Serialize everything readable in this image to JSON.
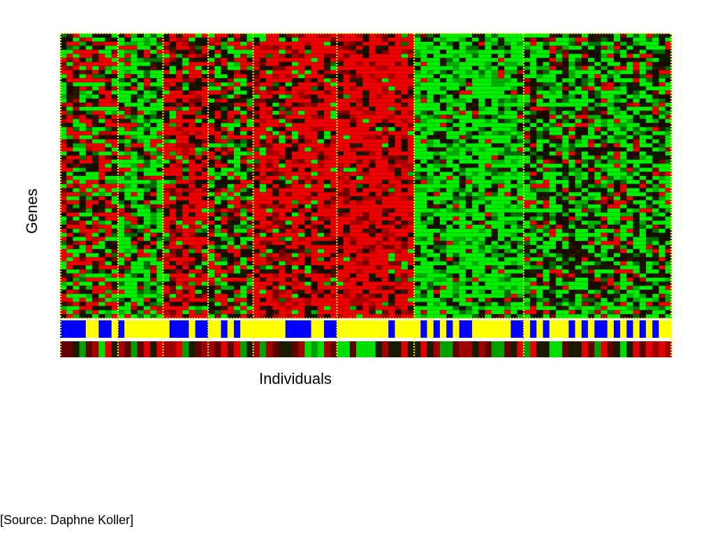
{
  "slide": {
    "ylabel": "Genes",
    "xlabel": "Individuals",
    "source": "[Source: Daphne Koller]"
  },
  "chart_data": {
    "type": "heatmap",
    "title": "",
    "xlabel": "Individuals",
    "ylabel": "Genes",
    "n_columns": 95,
    "n_rows": 70,
    "clusters": [
      {
        "columns": 9,
        "character": "mixed, red-leaning"
      },
      {
        "columns": 7,
        "character": "mostly green"
      },
      {
        "columns": 7,
        "character": "red with dark cells"
      },
      {
        "columns": 7,
        "character": "mixed, dark"
      },
      {
        "columns": 13,
        "character": "mostly red"
      },
      {
        "columns": 12,
        "character": "solid red with dark cells"
      },
      {
        "columns": 17,
        "character": "mostly green"
      },
      {
        "columns": 23,
        "character": "mixed, green-leaning"
      }
    ],
    "annotation_tracks": [
      {
        "categories": [
          "yellow",
          "blue"
        ]
      },
      {
        "categories": [
          "green",
          "red",
          "dark"
        ]
      }
    ],
    "colors": {
      "high": "#ff0000",
      "low": "#00ff00",
      "neutral": "#000000",
      "separator": "#ffff00",
      "track_a": "#0000ff",
      "track_b": "#ffff00"
    },
    "grid": true,
    "legend": "none"
  }
}
